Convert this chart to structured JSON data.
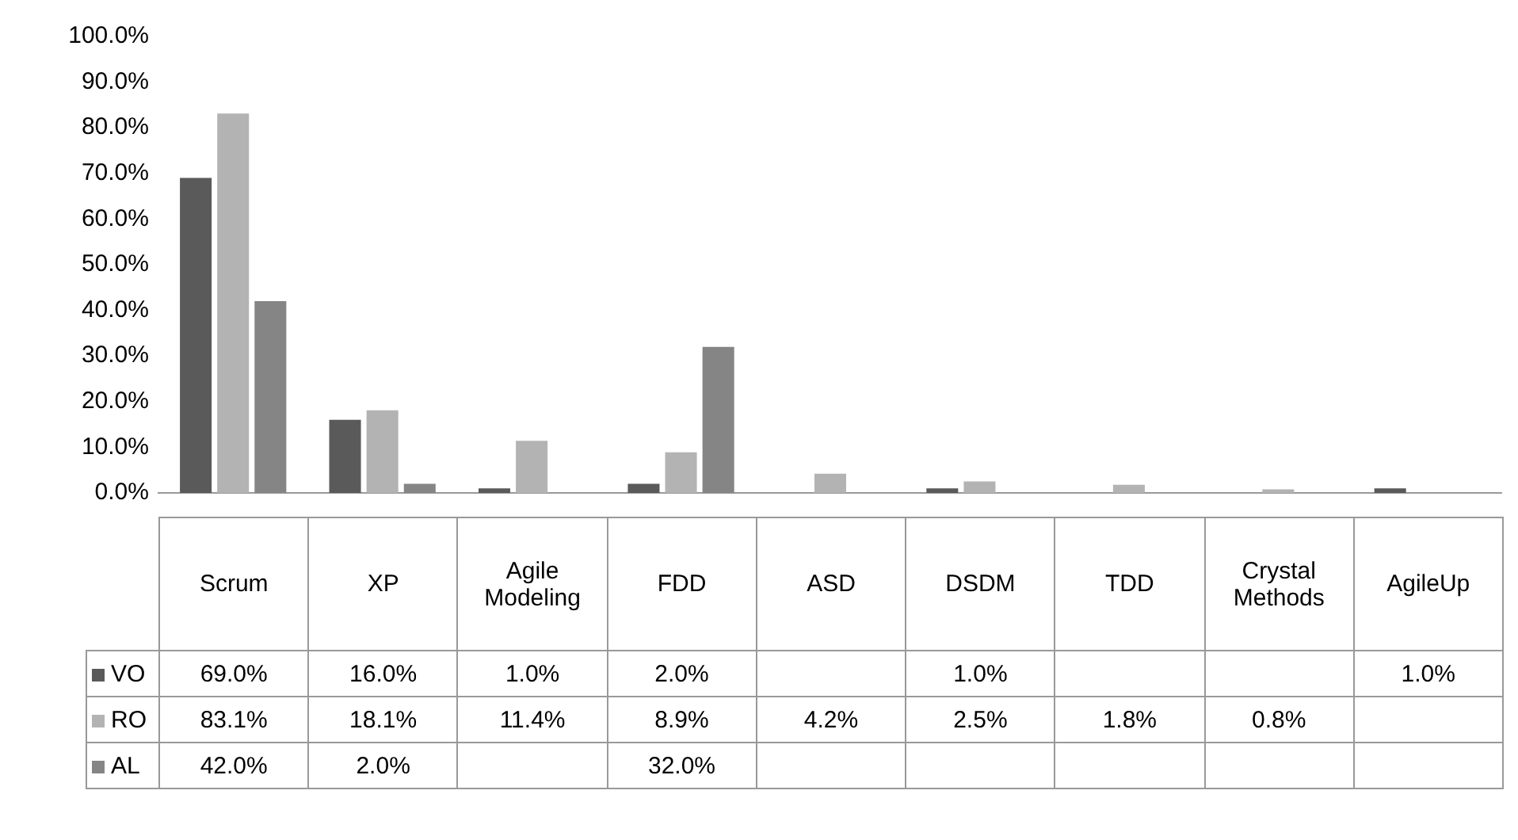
{
  "chart_data": {
    "type": "bar",
    "categories": [
      "Scrum",
      "XP",
      "Agile Modeling",
      "FDD",
      "ASD",
      "DSDM",
      "TDD",
      "Crystal Methods",
      "AgileUp"
    ],
    "series": [
      {
        "name": "VO",
        "color": "#5a5a5a",
        "values": [
          69.0,
          16.0,
          1.0,
          2.0,
          null,
          1.0,
          null,
          null,
          1.0
        ],
        "value_labels": [
          "69.0%",
          "16.0%",
          "1.0%",
          "2.0%",
          null,
          "1.0%",
          null,
          null,
          "1.0%"
        ]
      },
      {
        "name": "RO",
        "color": "#b3b3b3",
        "values": [
          83.1,
          18.1,
          11.4,
          8.9,
          4.2,
          2.5,
          1.8,
          0.8,
          null
        ],
        "value_labels": [
          "83.1%",
          "18.1%",
          "11.4%",
          "8.9%",
          "4.2%",
          "2.5%",
          "1.8%",
          "0.8%",
          null
        ]
      },
      {
        "name": "AL",
        "color": "#858585",
        "values": [
          42.0,
          2.0,
          null,
          32.0,
          null,
          null,
          null,
          null,
          null
        ],
        "value_labels": [
          "42.0%",
          "2.0%",
          null,
          "32.0%",
          null,
          null,
          null,
          null,
          null
        ]
      }
    ],
    "ylim": [
      0,
      100
    ],
    "yticks": [
      {
        "value": 0,
        "label": "0.0%"
      },
      {
        "value": 10,
        "label": "10.0%"
      },
      {
        "value": 20,
        "label": "20.0%"
      },
      {
        "value": 30,
        "label": "30.0%"
      },
      {
        "value": 40,
        "label": "40.0%"
      },
      {
        "value": 50,
        "label": "50.0%"
      },
      {
        "value": 60,
        "label": "60.0%"
      },
      {
        "value": 70,
        "label": "70.0%"
      },
      {
        "value": 80,
        "label": "80.0%"
      },
      {
        "value": 90,
        "label": "90.0%"
      },
      {
        "value": 100,
        "label": "100.0%"
      }
    ],
    "grid": false,
    "legend": "bottom"
  }
}
